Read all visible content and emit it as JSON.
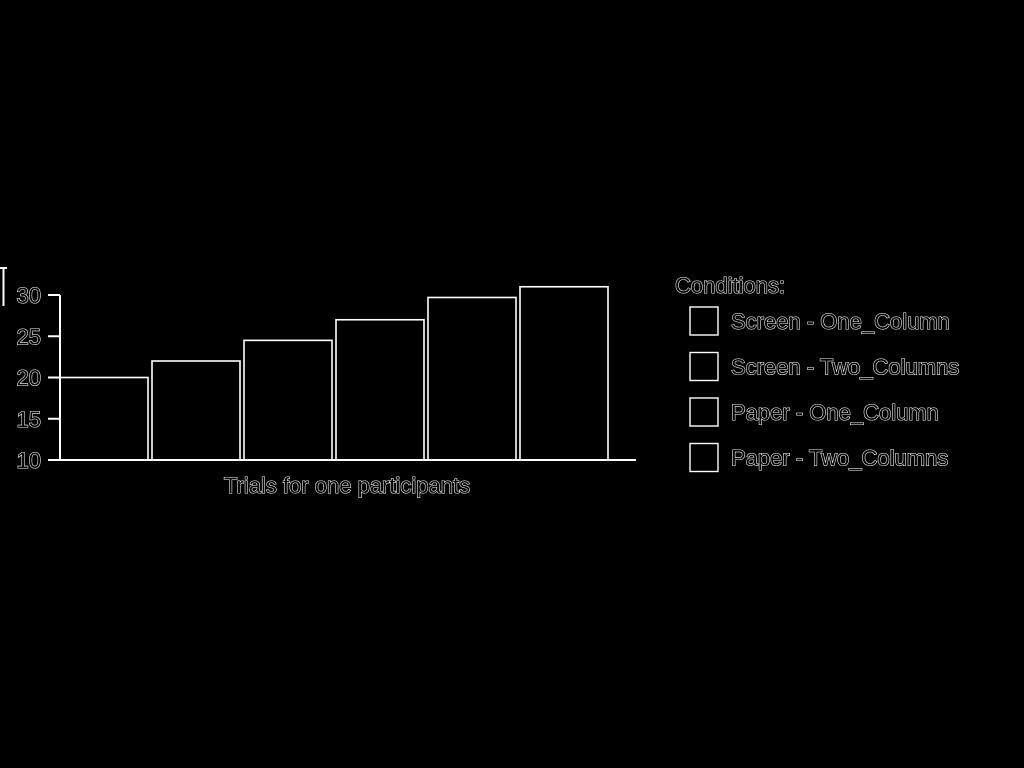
{
  "chart_data": {
    "type": "bar",
    "title": "",
    "xlabel": "Trials for one participants",
    "ylabel": "",
    "ylim": [
      10,
      30
    ],
    "yticks": [
      10,
      15,
      20,
      25,
      30
    ],
    "categories": [
      "",
      "",
      "",
      "",
      "",
      ""
    ],
    "values": [
      20,
      22,
      24.5,
      27,
      29.7,
      31
    ],
    "grid": false,
    "legend": {
      "title": "Conditions:",
      "placement": "right",
      "entries": [
        "Screen - One_Column",
        "Screen - Two_Columns",
        "Paper - One_Column",
        "Paper - Two_Columns"
      ]
    }
  },
  "colors": {
    "background": "#000000",
    "foreground": "#ffffff"
  }
}
